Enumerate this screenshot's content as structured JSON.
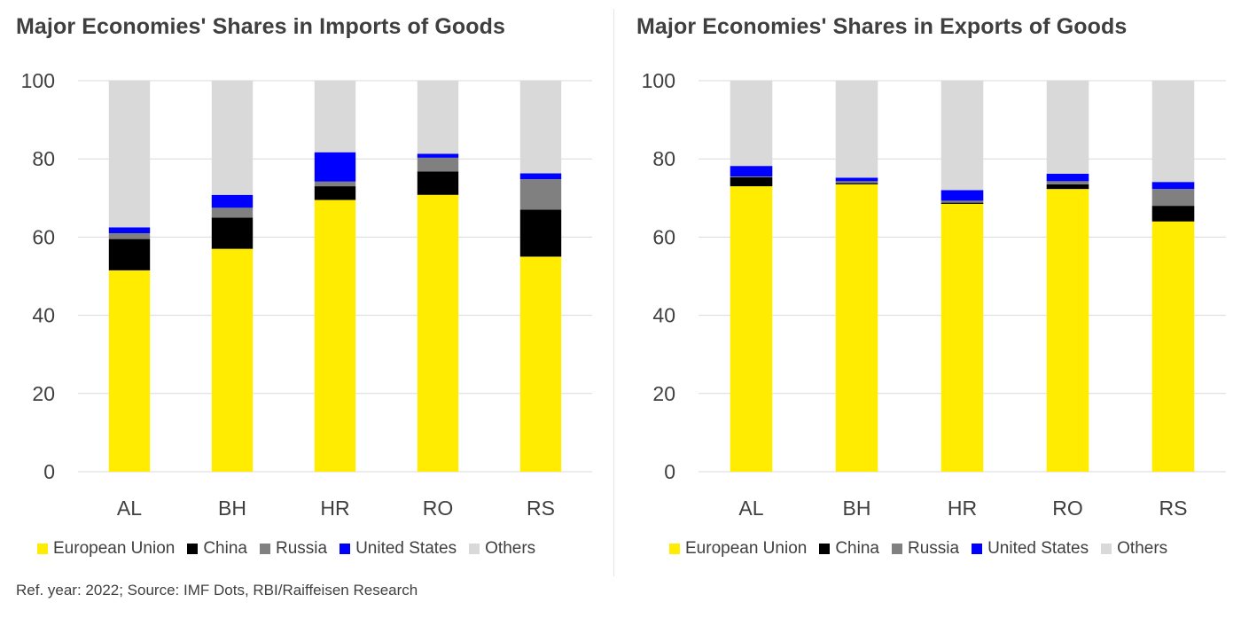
{
  "source_note": "Ref. year: 2022;  Source: IMF Dots, RBI/Raiffeisen Research",
  "legend": [
    {
      "label": "European Union",
      "color": "#ffec00"
    },
    {
      "label": "China",
      "color": "#000000"
    },
    {
      "label": "Russia",
      "color": "#808080"
    },
    {
      "label": "United States",
      "color": "#0000ff"
    },
    {
      "label": "Others",
      "color": "#d9d9d9"
    }
  ],
  "chart_data": [
    {
      "type": "bar",
      "stacked": true,
      "title": "Major Economies' Shares in Imports of Goods",
      "categories": [
        "AL",
        "BH",
        "HR",
        "RO",
        "RS"
      ],
      "ylim": [
        0,
        100
      ],
      "yticks": [
        0,
        20,
        40,
        60,
        80,
        100
      ],
      "grid": true,
      "legend_position": "bottom",
      "series": [
        {
          "name": "European Union",
          "color": "#ffec00",
          "values": [
            51.5,
            57,
            69.5,
            70.8,
            55
          ]
        },
        {
          "name": "China",
          "color": "#000000",
          "values": [
            8,
            8,
            3.5,
            6,
            12
          ]
        },
        {
          "name": "Russia",
          "color": "#808080",
          "values": [
            1.5,
            2.5,
            1.2,
            3.5,
            7.8
          ]
        },
        {
          "name": "United States",
          "color": "#0000ff",
          "values": [
            1.5,
            3.3,
            7.5,
            1,
            1.5
          ]
        },
        {
          "name": "Others",
          "color": "#d9d9d9",
          "values": [
            37.5,
            29.2,
            18.3,
            18.7,
            23.7
          ]
        }
      ]
    },
    {
      "type": "bar",
      "stacked": true,
      "title": "Major Economies' Shares in Exports of Goods",
      "categories": [
        "AL",
        "BH",
        "HR",
        "RO",
        "RS"
      ],
      "ylim": [
        0,
        100
      ],
      "yticks": [
        0,
        20,
        40,
        60,
        80,
        100
      ],
      "grid": true,
      "legend_position": "bottom",
      "series": [
        {
          "name": "European Union",
          "color": "#ffec00",
          "values": [
            73,
            73.5,
            68.5,
            72.3,
            64
          ]
        },
        {
          "name": "China",
          "color": "#000000",
          "values": [
            2.3,
            0.3,
            0.3,
            1.2,
            4
          ]
        },
        {
          "name": "Russia",
          "color": "#808080",
          "values": [
            0.2,
            0.5,
            0.5,
            0.8,
            4.3
          ]
        },
        {
          "name": "United States",
          "color": "#0000ff",
          "values": [
            2.7,
            0.9,
            2.7,
            1.9,
            1.8
          ]
        },
        {
          "name": "Others",
          "color": "#d9d9d9",
          "values": [
            21.8,
            24.8,
            28,
            23.8,
            25.9
          ]
        }
      ]
    }
  ]
}
